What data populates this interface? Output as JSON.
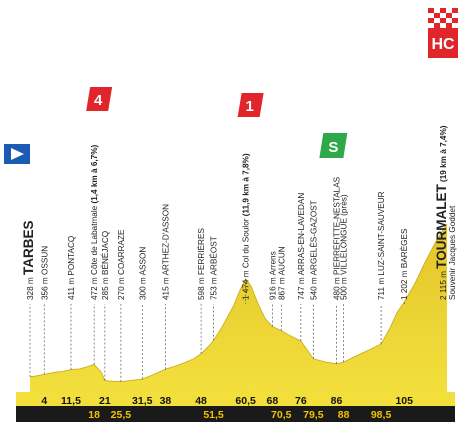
{
  "chart_data": {
    "type": "area",
    "title": "",
    "xlabel": "",
    "ylabel": "",
    "x_unit": "km",
    "y_unit": "m",
    "xlim": [
      0,
      117
    ],
    "ylim": [
      0,
      2400
    ],
    "colors": {
      "profile": "#f2df3c",
      "profile_dark": "#e4c52a",
      "baseline": "#111111",
      "km_bar": "#1a1a1a",
      "km_text_bottom": "#f3c300"
    },
    "profile": [
      {
        "x": 0,
        "y": 328
      },
      {
        "x": 2,
        "y": 340
      },
      {
        "x": 4,
        "y": 356
      },
      {
        "x": 7,
        "y": 380
      },
      {
        "x": 9,
        "y": 390
      },
      {
        "x": 11.5,
        "y": 411
      },
      {
        "x": 14,
        "y": 420
      },
      {
        "x": 16,
        "y": 445
      },
      {
        "x": 18,
        "y": 472
      },
      {
        "x": 20,
        "y": 380
      },
      {
        "x": 21,
        "y": 285
      },
      {
        "x": 23,
        "y": 275
      },
      {
        "x": 25.5,
        "y": 270
      },
      {
        "x": 28,
        "y": 285
      },
      {
        "x": 31.5,
        "y": 300
      },
      {
        "x": 35,
        "y": 360
      },
      {
        "x": 38,
        "y": 415
      },
      {
        "x": 42,
        "y": 470
      },
      {
        "x": 46,
        "y": 540
      },
      {
        "x": 48,
        "y": 598
      },
      {
        "x": 50,
        "y": 680
      },
      {
        "x": 51.5,
        "y": 753
      },
      {
        "x": 54,
        "y": 920
      },
      {
        "x": 57,
        "y": 1150
      },
      {
        "x": 59,
        "y": 1350
      },
      {
        "x": 60.5,
        "y": 1474
      },
      {
        "x": 62,
        "y": 1390
      },
      {
        "x": 64,
        "y": 1180
      },
      {
        "x": 66,
        "y": 1010
      },
      {
        "x": 68,
        "y": 916
      },
      {
        "x": 70.5,
        "y": 867
      },
      {
        "x": 72.5,
        "y": 820
      },
      {
        "x": 76,
        "y": 747
      },
      {
        "x": 79.5,
        "y": 540
      },
      {
        "x": 83,
        "y": 500
      },
      {
        "x": 86,
        "y": 480
      },
      {
        "x": 88,
        "y": 500
      },
      {
        "x": 91,
        "y": 560
      },
      {
        "x": 95,
        "y": 640
      },
      {
        "x": 98.5,
        "y": 711
      },
      {
        "x": 101,
        "y": 900
      },
      {
        "x": 103,
        "y": 1080
      },
      {
        "x": 105,
        "y": 1202
      },
      {
        "x": 108,
        "y": 1420
      },
      {
        "x": 111,
        "y": 1680
      },
      {
        "x": 114,
        "y": 1920
      },
      {
        "x": 117,
        "y": 2115
      }
    ],
    "points": [
      {
        "name": "TARBES",
        "alt": "328 m",
        "km": 0,
        "alt_m": 328,
        "big": true
      },
      {
        "name": "OSSUN",
        "alt": "356 m",
        "km": 4,
        "alt_m": 356
      },
      {
        "name": "PONTACQ",
        "alt": "411 m",
        "km": 11.5,
        "alt_m": 411
      },
      {
        "name": "Côte de Labatmale",
        "alt": "472 m",
        "note": "(1,4 km à 6,7%)",
        "km": 18,
        "alt_m": 472
      },
      {
        "name": "BÉNÉJACQ",
        "alt": "285 m",
        "km": 21,
        "alt_m": 285
      },
      {
        "name": "COARRAZE",
        "alt": "270 m",
        "km": 25.5,
        "alt_m": 270
      },
      {
        "name": "ASSON",
        "alt": "300 m",
        "km": 31.5,
        "alt_m": 300
      },
      {
        "name": "ARTHEZ-D'ASSON",
        "alt": "415 m",
        "km": 38,
        "alt_m": 415
      },
      {
        "name": "FERRIÈRES",
        "alt": "598 m",
        "km": 48,
        "alt_m": 598
      },
      {
        "name": "ARBÉOST",
        "alt": "753 m",
        "km": 51.5,
        "alt_m": 753
      },
      {
        "name": "Col du Soulor",
        "alt": "1 474 m",
        "note": "(11,9 km à 7,8%)",
        "km": 60.5,
        "alt_m": 1474
      },
      {
        "name": "Arrens",
        "alt": "916 m",
        "km": 68,
        "alt_m": 916
      },
      {
        "name": "AUCUN",
        "alt": "867 m",
        "km": 70.5,
        "alt_m": 867
      },
      {
        "name": "ARRAS-EN-LAVEDAN",
        "alt": "747 m",
        "km": 76,
        "alt_m": 747
      },
      {
        "name": "ARGELÈS-GAZOST",
        "alt": "540 m",
        "km": 79.5,
        "alt_m": 540
      },
      {
        "name": "PIERREFITTE-NESTALAS",
        "alt": "480 m",
        "km": 86,
        "alt_m": 480
      },
      {
        "name": "VILLELONGUE (près)",
        "alt": "500 m",
        "km": 88,
        "alt_m": 500
      },
      {
        "name": "LUZ-SAINT-SAUVEUR",
        "alt": "711 m",
        "km": 98.5,
        "alt_m": 711
      },
      {
        "name": "BARÈGES",
        "alt": "1 202 m",
        "km": 105,
        "alt_m": 1202
      },
      {
        "name": "TOURMALET",
        "alt": "2 115 m",
        "note": "(19 km à 7,4%)",
        "sub": "Souvenir Jacques Goddet",
        "km": 117,
        "alt_m": 2115,
        "big": true
      }
    ],
    "km_labels": [
      {
        "km": 4,
        "text": "4",
        "row": "top"
      },
      {
        "km": 11.5,
        "text": "11,5",
        "row": "top"
      },
      {
        "km": 18,
        "text": "18",
        "row": "bottom"
      },
      {
        "km": 21,
        "text": "21",
        "row": "top"
      },
      {
        "km": 25.5,
        "text": "25,5",
        "row": "bottom"
      },
      {
        "km": 31.5,
        "text": "31,5",
        "row": "top"
      },
      {
        "km": 38,
        "text": "38",
        "row": "top"
      },
      {
        "km": 48,
        "text": "48",
        "row": "top"
      },
      {
        "km": 51.5,
        "text": "51,5",
        "row": "bottom"
      },
      {
        "km": 60.5,
        "text": "60,5",
        "row": "top"
      },
      {
        "km": 68,
        "text": "68",
        "row": "top"
      },
      {
        "km": 70.5,
        "text": "70,5",
        "row": "bottom"
      },
      {
        "km": 76,
        "text": "76",
        "row": "top"
      },
      {
        "km": 79.5,
        "text": "79,5",
        "row": "bottom"
      },
      {
        "km": 86,
        "text": "86",
        "row": "top"
      },
      {
        "km": 88,
        "text": "88",
        "row": "bottom"
      },
      {
        "km": 98.5,
        "text": "98,5",
        "row": "bottom"
      },
      {
        "km": 105,
        "text": "105",
        "row": "top"
      }
    ],
    "climbs": [
      {
        "label": "4",
        "km": 18,
        "color": "#e0262b",
        "kind": "category"
      },
      {
        "label": "1",
        "km": 60.5,
        "color": "#e0262b",
        "kind": "category"
      },
      {
        "label": "HC",
        "km": 117,
        "color": "#e0262b",
        "kind": "hors-categorie"
      }
    ],
    "sprint": {
      "label": "S",
      "km": 79.5,
      "color": "#2fa84a"
    },
    "start_flag": {
      "color": "#1c5bb4",
      "icon": "start-flag-icon"
    },
    "finish_flag": {
      "icon": "checkered-flag-icon"
    }
  }
}
